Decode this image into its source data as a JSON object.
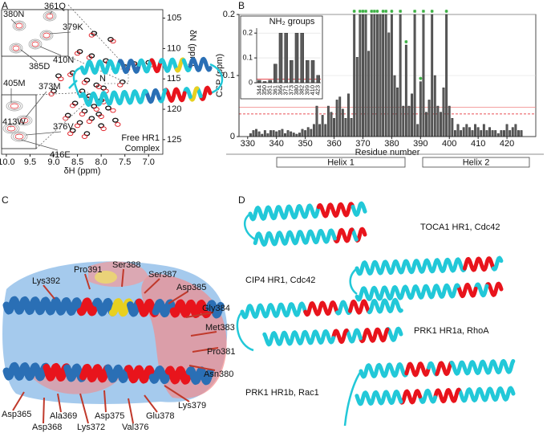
{
  "panel_labels": [
    "A",
    "B",
    "C",
    "D"
  ],
  "chart_data": [
    {
      "type": "scatter",
      "x_label": "δH (ppm)",
      "y_label": "δN (ppm)",
      "xlim": [
        10.1,
        6.7
      ],
      "ylim": [
        127.4,
        103.6
      ],
      "xticks": [
        {
          "value": 10,
          "label": "10.0"
        },
        9.5,
        {
          "value": 9,
          "label": "9.0"
        },
        8.5,
        {
          "value": 8,
          "label": "8.0"
        },
        7.5,
        {
          "value": 7,
          "label": "7.0"
        }
      ],
      "yticks": [
        105,
        110,
        115,
        120,
        125
      ],
      "series": [
        {
          "name": "Free HR1",
          "color": "#111111",
          "x": [
            8.45,
            8.2,
            7.9,
            8.6,
            8.3,
            8.1,
            7.95,
            8.4,
            8.25,
            8.0,
            8.55,
            8.15,
            7.85,
            8.35,
            8.05,
            8.7,
            8.2,
            7.7,
            8.45,
            8.0,
            8.6,
            8.3,
            7.5,
            7.55,
            7.3,
            7.0,
            9.0,
            8.9,
            7.8,
            8.15
          ],
          "values": [
            110.5,
            111.2,
            112,
            114,
            115.2,
            116,
            116.5,
            117,
            117.8,
            118.5,
            119,
            119.5,
            119.8,
            120.3,
            120.8,
            121,
            121.5,
            121.8,
            122.2,
            122.7,
            123.5,
            124,
            113,
            115.5,
            112.5,
            112.3,
            117,
            114.5,
            108.5,
            107.5
          ]
        },
        {
          "name": "Complex",
          "color": "#e0141c",
          "x": [
            8.5,
            8.25,
            7.85,
            8.65,
            8.35,
            8.05,
            7.9,
            8.45,
            8.3,
            7.95,
            8.6,
            8.1,
            7.75,
            8.4,
            8.0,
            8.75,
            8.25,
            7.65,
            8.5,
            7.95,
            8.65,
            8.35,
            7.45,
            7.6,
            7.25,
            6.95,
            9.05,
            8.85,
            7.75,
            8.2
          ],
          "values": [
            110.8,
            111.5,
            112.3,
            114.3,
            115.6,
            116.3,
            117,
            117.4,
            118.2,
            118.8,
            119.4,
            120,
            120.2,
            120.8,
            121.2,
            121.5,
            122,
            122.5,
            122.7,
            123.2,
            124,
            124.5,
            113.4,
            116,
            112.8,
            112.7,
            117.5,
            115,
            108.8,
            107.8
          ]
        }
      ],
      "annotations": [
        "380N",
        "361Q",
        "379K",
        "410N",
        "385D",
        "405M",
        "373M",
        "413W",
        "376V",
        "416E"
      ]
    },
    {
      "type": "bar",
      "x_label": "Residue number",
      "y_label": "CSP (ppm)",
      "color": "#5a5a5a",
      "xlim": [
        327,
        430
      ],
      "ylim": [
        0,
        0.2
      ],
      "xticks": [
        330,
        340,
        350,
        360,
        370,
        380,
        390,
        400,
        410,
        420
      ],
      "yticks": [
        0,
        0.1,
        0.2
      ],
      "x": [
        331,
        332,
        333,
        334,
        335,
        336,
        337,
        338,
        339,
        340,
        341,
        342,
        343,
        344,
        345,
        346,
        347,
        348,
        349,
        350,
        351,
        352,
        353,
        354,
        355,
        356,
        357,
        358,
        359,
        360,
        361,
        362,
        363,
        364,
        365,
        366,
        367,
        368,
        369,
        370,
        371,
        372,
        373,
        374,
        375,
        376,
        377,
        378,
        379,
        380,
        381,
        382,
        383,
        384,
        385,
        386,
        387,
        388,
        389,
        390,
        391,
        392,
        393,
        394,
        395,
        396,
        397,
        398,
        399,
        400,
        401,
        402,
        403,
        404,
        405,
        406,
        407,
        408,
        409,
        410,
        411,
        412,
        413,
        414,
        415,
        416,
        417,
        418,
        419,
        420,
        421,
        422,
        423,
        424,
        425
      ],
      "values": [
        0.005,
        0.01,
        0.012,
        0.008,
        0.004,
        0.01,
        0.005,
        0.01,
        0.01,
        0.008,
        0.01,
        0.012,
        0.005,
        0.01,
        0.008,
        0.006,
        0.004,
        0.006,
        0.012,
        0.01,
        0.015,
        0.012,
        0.02,
        0.05,
        0.02,
        0.035,
        0.02,
        0.05,
        0.04,
        0.03,
        0.06,
        0.065,
        0.045,
        0.03,
        0.07,
        0.03,
        0.2,
        0.13,
        0.2,
        0.2,
        0.2,
        0.14,
        0.2,
        0.2,
        0.2,
        0.2,
        0.2,
        0.2,
        0.17,
        0.2,
        0.1,
        0.08,
        0.2,
        0.05,
        0.15,
        0.05,
        0.07,
        0.2,
        0.02,
        0.09,
        0.2,
        0.04,
        0.06,
        0.2,
        0.1,
        0.05,
        0.04,
        0.08,
        0.2,
        0.05,
        0.03,
        0.01,
        0.02,
        0.01,
        0.015,
        0.02,
        0.015,
        0.01,
        0.02,
        0.015,
        0.01,
        0.02,
        0.01,
        0.015,
        0.01,
        0.01,
        0.005,
        0.01,
        0.01,
        0.02,
        0.01,
        0.015,
        0.02,
        0.01,
        0.01
      ],
      "reference_lines": [
        {
          "value": 0.037,
          "style": "dashed",
          "color": "#e0141c"
        },
        {
          "value": 0.048,
          "style": "solid",
          "color": "#f08080"
        }
      ],
      "asterisk_x": [
        367,
        369,
        370,
        371,
        373,
        374,
        375,
        377,
        378,
        380,
        383,
        385,
        388,
        390,
        391,
        394,
        399
      ],
      "helices": [
        "Helix 1",
        "Helix 2"
      ]
    },
    {
      "type": "bar",
      "title": "NH₂ groups",
      "color": "#5a5a5a",
      "categories": [
        "344",
        "350",
        "351",
        "361",
        "366",
        "371",
        "373",
        "380",
        "382",
        "399",
        "410",
        "423"
      ],
      "values": [
        0.01,
        0.005,
        0.01,
        0.075,
        0.2,
        0.2,
        0.09,
        0.2,
        0.2,
        0.09,
        0.09,
        0.03
      ],
      "ylim": [
        0,
        0.22
      ],
      "yticks": [
        0,
        0.1,
        0.2
      ],
      "reference_lines": [
        {
          "value": 0.015,
          "style": "solid",
          "color": "#e0141c"
        }
      ]
    }
  ],
  "structures": {
    "c_terminus_label": "N",
    "c_residue_labels": [
      "Lys392",
      "Pro391",
      "Ser388",
      "Ser387",
      "Asp385",
      "Gly384",
      "Met383",
      "Pro381",
      "Asn380",
      "Lys379",
      "Glu378",
      "Val376",
      "Asp375",
      "Lys372",
      "Ala369",
      "Asp368",
      "Asp365"
    ],
    "d_complex_labels": [
      "TOCA1 HR1, Cdc42",
      "CIP4 HR1, Cdc42",
      "PRK1 HR1a, RhoA",
      "PRK1 HR1b, Rac1"
    ]
  }
}
